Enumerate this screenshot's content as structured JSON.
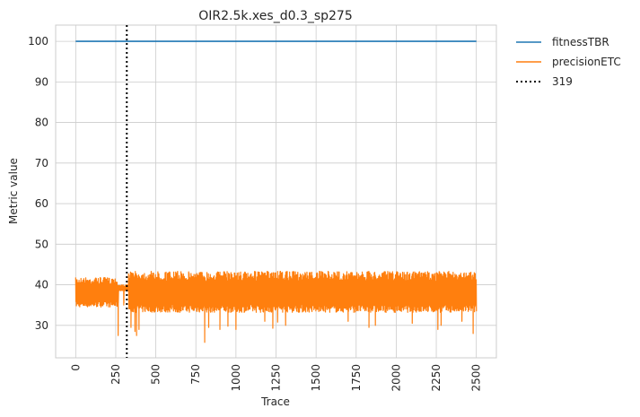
{
  "chart_data": {
    "type": "line",
    "title": "OIR2.5k.xes_d0.3_sp275",
    "xlabel": "Trace",
    "ylabel": "Metric value",
    "xlim": [
      -125,
      2625
    ],
    "ylim": [
      22,
      104
    ],
    "xticks": [
      0,
      250,
      500,
      750,
      1000,
      1250,
      1500,
      1750,
      2000,
      2250,
      2500
    ],
    "yticks": [
      30,
      40,
      50,
      60,
      70,
      80,
      90,
      100
    ],
    "grid": true,
    "legend_position": "outside-top-right",
    "series": [
      {
        "name": "fitnessTBR",
        "color": "#1f77b4",
        "x": [
          0,
          2500
        ],
        "values": [
          100,
          100
        ]
      },
      {
        "name": "precisionETC",
        "color": "#ff7f0e",
        "band_low": 34.5,
        "band_high": 41.5,
        "x_end": 2500,
        "segments": [
          {
            "x_from": 0,
            "x_to": 260,
            "low": 34.5,
            "high": 41.8
          },
          {
            "x_from": 260,
            "x_to": 330,
            "low": 38.5,
            "high": 40.0
          },
          {
            "x_from": 330,
            "x_to": 2500,
            "low": 33.2,
            "high": 43.3
          }
        ],
        "dips": [
          {
            "x": 265,
            "y": 27.5
          },
          {
            "x": 300,
            "y": 35.0
          },
          {
            "x": 345,
            "y": 29.5
          },
          {
            "x": 370,
            "y": 28.5
          },
          {
            "x": 380,
            "y": 27.5
          },
          {
            "x": 395,
            "y": 29.0
          },
          {
            "x": 805,
            "y": 25.8
          },
          {
            "x": 830,
            "y": 29.5
          },
          {
            "x": 900,
            "y": 29.0
          },
          {
            "x": 950,
            "y": 29.8
          },
          {
            "x": 1000,
            "y": 29.0
          },
          {
            "x": 1180,
            "y": 31.0
          },
          {
            "x": 1230,
            "y": 29.3
          },
          {
            "x": 1260,
            "y": 30.8
          },
          {
            "x": 1310,
            "y": 30.0
          },
          {
            "x": 1700,
            "y": 31.0
          },
          {
            "x": 1830,
            "y": 29.5
          },
          {
            "x": 1870,
            "y": 30.0
          },
          {
            "x": 2100,
            "y": 30.5
          },
          {
            "x": 2260,
            "y": 29.0
          },
          {
            "x": 2280,
            "y": 30.0
          },
          {
            "x": 2410,
            "y": 31.0
          },
          {
            "x": 2480,
            "y": 28.0
          }
        ]
      },
      {
        "name": "319",
        "color": "#000000",
        "style": "dotted",
        "x": 319
      }
    ]
  }
}
